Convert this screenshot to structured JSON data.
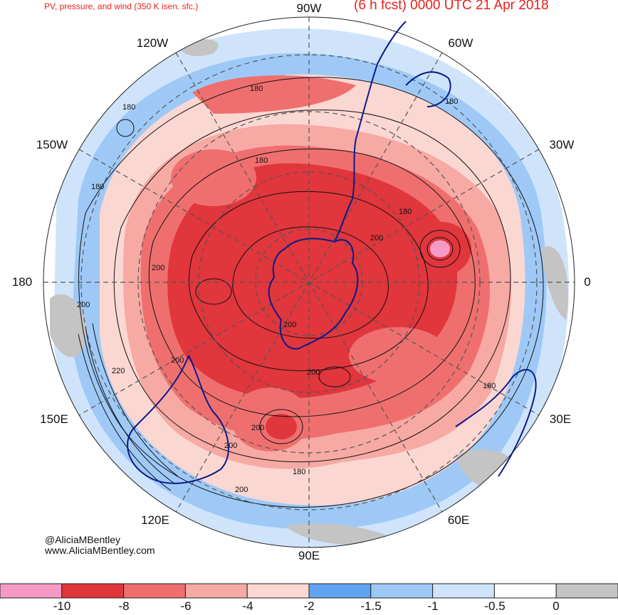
{
  "title_left": "PV, pressure, and wind (350 K isen. sfc.)",
  "title_right": "(6 h fcst) 0000 UTC 21 Apr 2018",
  "lon_labels": {
    "w90": "90W",
    "w60": "60W",
    "w120": "120W",
    "w30": "30W",
    "w150": "150W",
    "zero": "0",
    "e180": "180",
    "e150": "150E",
    "e30": "30E",
    "e120": "120E",
    "e60": "60E",
    "e90": "90E"
  },
  "contour_labels": [
    "180",
    "180",
    "180",
    "180",
    "180",
    "180",
    "200",
    "200",
    "200",
    "200",
    "200",
    "200",
    "200",
    "200",
    "220",
    "180",
    "180",
    "200"
  ],
  "credits": {
    "handle": "@AliciaMBentley",
    "website": "www.AliciaMBentley.com"
  },
  "colorbar": {
    "labels": [
      "-10",
      "-8",
      "-6",
      "-4",
      "-2",
      "-1.5",
      "-1",
      "-0.5",
      "0"
    ],
    "colors": [
      "#f59ac4",
      "#e0363c",
      "#ef6f6f",
      "#f7a9a4",
      "#fbd7d2",
      "#5ea4ee",
      "#9ec9f7",
      "#cfe4fb",
      "#ffffff",
      "#c4c4c4"
    ]
  },
  "colors": {
    "title": "#e8201c",
    "coastline": "#0a1a8c",
    "graticule": "#555555",
    "contour": "#111111"
  }
}
